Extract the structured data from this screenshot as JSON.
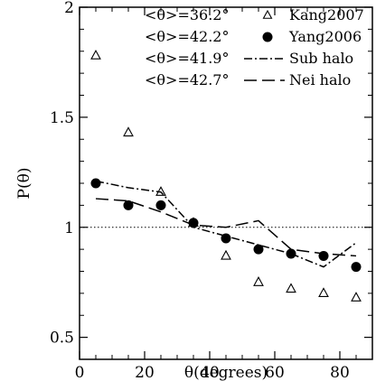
{
  "chart_data": {
    "type": "scatter",
    "xlabel": "θ(degrees)",
    "ylabel": "P(θ)",
    "xlim": [
      0,
      90
    ],
    "ylim": [
      0.4,
      2.0
    ],
    "x_ticks": [
      0,
      20,
      40,
      60,
      80
    ],
    "y_ticks": [
      0.5,
      1,
      1.5,
      2
    ],
    "x_tick_labels": [
      "0",
      "20",
      "40",
      "60",
      "80"
    ],
    "y_tick_labels": [
      "0.5",
      "1",
      "1.5",
      "2"
    ],
    "reference_line": {
      "y": 1,
      "style": "dotted"
    },
    "legend_position": "top-right",
    "series": [
      {
        "name": "Kang2007",
        "annotation": "<θ>=36.2°",
        "marker": "open-triangle",
        "x": [
          5,
          15,
          25,
          35,
          45,
          55,
          65,
          75,
          85
        ],
        "y": [
          1.78,
          1.43,
          1.16,
          1.02,
          0.87,
          0.75,
          0.72,
          0.7,
          0.68
        ]
      },
      {
        "name": "Yang2006",
        "annotation": "<θ>=42.2°",
        "marker": "filled-circle",
        "x": [
          5,
          15,
          25,
          35,
          45,
          55,
          65,
          75,
          85
        ],
        "y": [
          1.2,
          1.1,
          1.1,
          1.02,
          0.95,
          0.9,
          0.88,
          0.87,
          0.82
        ]
      },
      {
        "name": "Sub halo",
        "annotation": "<θ>=41.9°",
        "line": "dash-dot",
        "x": [
          5,
          15,
          25,
          35,
          45,
          55,
          65,
          75,
          85
        ],
        "y": [
          1.21,
          1.18,
          1.16,
          1.0,
          0.96,
          0.92,
          0.88,
          0.82,
          0.93
        ]
      },
      {
        "name": "Nei halo",
        "annotation": "<θ>=42.7°",
        "line": "long-dash",
        "x": [
          5,
          15,
          25,
          35,
          45,
          55,
          65,
          75,
          85
        ],
        "y": [
          1.13,
          1.12,
          1.07,
          1.01,
          1.0,
          1.03,
          0.9,
          0.88,
          0.87
        ]
      }
    ]
  }
}
